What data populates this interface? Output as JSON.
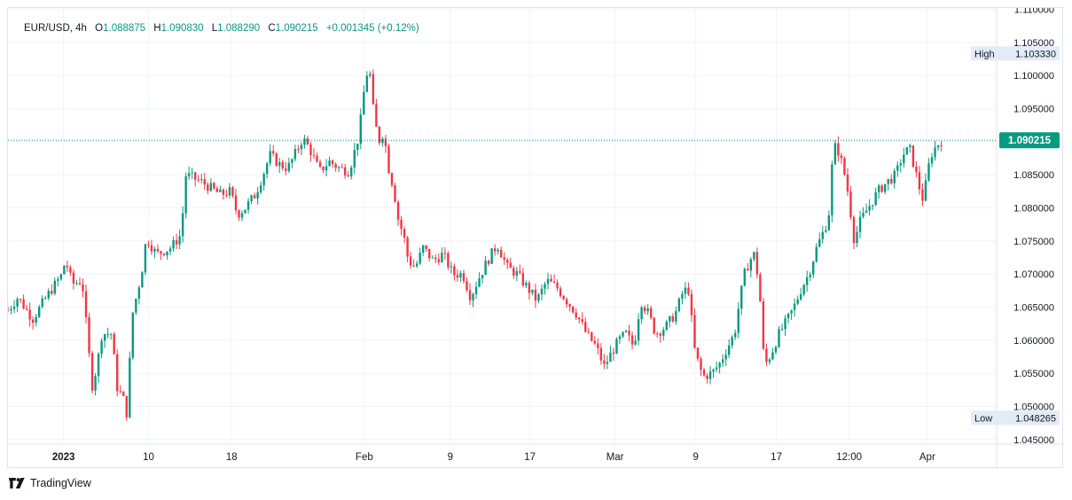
{
  "legend": {
    "symbol": "EUR/USD",
    "interval": "4h",
    "open_label": "O",
    "open": "1.088875",
    "high_label": "H",
    "high": "1.090830",
    "low_label": "L",
    "low": "1.088290",
    "close_label": "C",
    "close": "1.090215",
    "change": "+0.001345 (+0.12%)"
  },
  "markers": {
    "high_label": "High",
    "high_value": "1.103330",
    "low_label": "Low",
    "low_value": "1.048265",
    "last_price": "1.090215"
  },
  "footer": {
    "brand": "TradingView"
  },
  "colors": {
    "up": "#089981",
    "down": "#f23645",
    "grid": "#f0f3fa",
    "axis_text": "#131722"
  },
  "chart_data": {
    "type": "candlestick",
    "title": "EUR/USD, 4h",
    "y_ticks": [
      "1.110000",
      "1.105000",
      "1.100000",
      "1.095000",
      "1.090000",
      "1.085000",
      "1.080000",
      "1.075000",
      "1.070000",
      "1.065000",
      "1.060000",
      "1.055000",
      "1.050000",
      "1.045000"
    ],
    "y_tick_values": [
      1.11,
      1.105,
      1.1,
      1.095,
      1.09,
      1.085,
      1.08,
      1.075,
      1.07,
      1.065,
      1.06,
      1.055,
      1.05,
      1.045
    ],
    "ylim": [
      1.0443,
      1.1102
    ],
    "x_ticks": [
      "2023",
      "10",
      "18",
      "Feb",
      "9",
      "17",
      "Mar",
      "9",
      "17",
      "12:00",
      "Apr"
    ],
    "x_tick_positions": [
      0.0562,
      0.1422,
      0.2262,
      0.3604,
      0.4474,
      0.5279,
      0.614,
      0.6957,
      0.7772,
      0.8508,
      0.9299
    ],
    "grid": true,
    "path_points": [
      [
        0.0,
        1.0645
      ],
      [
        0.01,
        1.0665
      ],
      [
        0.025,
        1.0632
      ],
      [
        0.04,
        1.0668
      ],
      [
        0.055,
        1.07
      ],
      [
        0.058,
        1.0722
      ],
      [
        0.065,
        1.0685
      ],
      [
        0.075,
        1.069
      ],
      [
        0.085,
        1.053
      ],
      [
        0.09,
        1.056
      ],
      [
        0.095,
        1.061
      ],
      [
        0.105,
        1.061
      ],
      [
        0.11,
        1.053
      ],
      [
        0.117,
        1.051
      ],
      [
        0.12,
        1.049
      ],
      [
        0.126,
        1.064
      ],
      [
        0.135,
        1.07
      ],
      [
        0.14,
        1.0755
      ],
      [
        0.15,
        1.073
      ],
      [
        0.165,
        1.074
      ],
      [
        0.175,
        1.076
      ],
      [
        0.18,
        1.085
      ],
      [
        0.195,
        1.084
      ],
      [
        0.205,
        1.083
      ],
      [
        0.215,
        1.082
      ],
      [
        0.225,
        1.0825
      ],
      [
        0.232,
        1.079
      ],
      [
        0.24,
        1.08
      ],
      [
        0.25,
        1.082
      ],
      [
        0.258,
        1.085
      ],
      [
        0.265,
        1.088
      ],
      [
        0.275,
        1.0865
      ],
      [
        0.283,
        1.086
      ],
      [
        0.29,
        1.088
      ],
      [
        0.298,
        1.0905
      ],
      [
        0.305,
        1.089
      ],
      [
        0.315,
        1.0855
      ],
      [
        0.325,
        1.087
      ],
      [
        0.335,
        1.086
      ],
      [
        0.345,
        1.0855
      ],
      [
        0.355,
        1.091
      ],
      [
        0.36,
        1.0975
      ],
      [
        0.365,
        1.102
      ],
      [
        0.37,
        1.094
      ],
      [
        0.375,
        1.09
      ],
      [
        0.38,
        1.0915
      ],
      [
        0.385,
        1.086
      ],
      [
        0.39,
        1.083
      ],
      [
        0.395,
        1.078
      ],
      [
        0.4,
        1.076
      ],
      [
        0.405,
        1.072
      ],
      [
        0.412,
        1.071
      ],
      [
        0.42,
        1.074
      ],
      [
        0.43,
        1.072
      ],
      [
        0.44,
        1.073
      ],
      [
        0.45,
        1.07
      ],
      [
        0.46,
        1.07
      ],
      [
        0.468,
        1.0665
      ],
      [
        0.475,
        1.069
      ],
      [
        0.485,
        1.072
      ],
      [
        0.495,
        1.0745
      ],
      [
        0.505,
        1.071
      ],
      [
        0.515,
        1.07
      ],
      [
        0.525,
        1.068
      ],
      [
        0.535,
        1.066
      ],
      [
        0.545,
        1.069
      ],
      [
        0.555,
        1.068
      ],
      [
        0.565,
        1.066
      ],
      [
        0.575,
        1.064
      ],
      [
        0.585,
        1.061
      ],
      [
        0.595,
        1.059
      ],
      [
        0.603,
        1.056
      ],
      [
        0.61,
        1.058
      ],
      [
        0.618,
        1.06
      ],
      [
        0.625,
        1.061
      ],
      [
        0.633,
        1.059
      ],
      [
        0.64,
        1.066
      ],
      [
        0.648,
        1.064
      ],
      [
        0.655,
        1.061
      ],
      [
        0.665,
        1.062
      ],
      [
        0.675,
        1.064
      ],
      [
        0.682,
        1.067
      ],
      [
        0.688,
        1.068
      ],
      [
        0.695,
        1.058
      ],
      [
        0.703,
        1.0545
      ],
      [
        0.712,
        1.055
      ],
      [
        0.72,
        1.0565
      ],
      [
        0.728,
        1.059
      ],
      [
        0.735,
        1.061
      ],
      [
        0.74,
        1.066
      ],
      [
        0.745,
        1.07
      ],
      [
        0.75,
        1.072
      ],
      [
        0.755,
        1.073
      ],
      [
        0.76,
        1.068
      ],
      [
        0.765,
        1.056
      ],
      [
        0.772,
        1.058
      ],
      [
        0.78,
        1.061
      ],
      [
        0.788,
        1.063
      ],
      [
        0.795,
        1.065
      ],
      [
        0.803,
        1.068
      ],
      [
        0.81,
        1.07
      ],
      [
        0.818,
        1.074
      ],
      [
        0.825,
        1.0765
      ],
      [
        0.83,
        1.0785
      ],
      [
        0.835,
        1.0895
      ],
      [
        0.84,
        1.0885
      ],
      [
        0.845,
        1.086
      ],
      [
        0.85,
        1.082
      ],
      [
        0.856,
        1.075
      ],
      [
        0.862,
        1.078
      ],
      [
        0.87,
        1.08
      ],
      [
        0.88,
        1.0825
      ],
      [
        0.89,
        1.084
      ],
      [
        0.898,
        1.085
      ],
      [
        0.905,
        1.088
      ],
      [
        0.912,
        1.089
      ],
      [
        0.917,
        1.086
      ],
      [
        0.922,
        1.083
      ],
      [
        0.926,
        1.081
      ],
      [
        0.93,
        1.0855
      ],
      [
        0.935,
        1.0885
      ],
      [
        0.94,
        1.0895
      ],
      [
        0.944,
        1.0902
      ]
    ]
  }
}
